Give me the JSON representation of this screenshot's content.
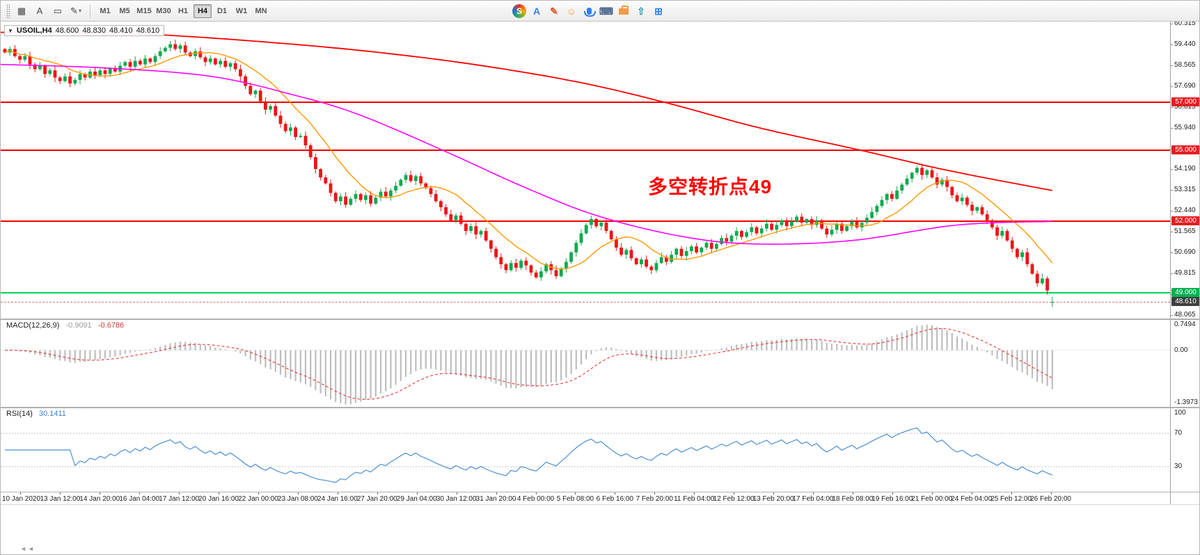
{
  "window": {
    "bottom_scroll_hint": "◄◄"
  },
  "toolbar": {
    "left_icons": [
      {
        "name": "charts-grid-icon",
        "glyph": "▦"
      },
      {
        "name": "insert-text-icon",
        "glyph": "A"
      },
      {
        "name": "text-label-icon",
        "glyph": "▭"
      },
      {
        "name": "draw-tools-icon",
        "glyph": "✎",
        "caret": "▾"
      }
    ],
    "timeframes": [
      "M1",
      "M5",
      "M15",
      "M30",
      "H1",
      "H4",
      "D1",
      "W1",
      "MN"
    ],
    "active_timeframe": "H4",
    "ime_icons": [
      {
        "name": "sogou-logo-icon",
        "glyph": "S",
        "type": "logo"
      },
      {
        "name": "input-mode-icon",
        "glyph": "A",
        "color": "#2f80ed"
      },
      {
        "name": "handwrite-pen-icon",
        "glyph": "✎",
        "color": "#e05a2b"
      },
      {
        "name": "emoji-icon",
        "glyph": "☺",
        "color": "#f2a33c"
      },
      {
        "name": "voice-mic-icon",
        "type": "mic"
      },
      {
        "name": "soft-keyboard-icon",
        "glyph": "⌨",
        "color": "#4f6b8f"
      },
      {
        "name": "toolbox-icon",
        "type": "toolbox"
      },
      {
        "name": "skin-share-icon",
        "glyph": "⇧",
        "color": "#2a9db0"
      },
      {
        "name": "apps-grid-icon",
        "glyph": "⊞",
        "color": "#2f80ed"
      }
    ]
  },
  "chart": {
    "collapse_arrow": "▼",
    "symbol": "USOIL,H4",
    "open": "48.600",
    "high": "48.830",
    "low": "48.410",
    "close": "48.610",
    "annotation": {
      "text": "多空转折点49",
      "color": "#ff0000"
    }
  },
  "chart_data": {
    "type": "candlestick",
    "symbol": "USOIL",
    "timeframe": "H4",
    "closes": [
      59.1,
      59.25,
      58.95,
      58.8,
      58.95,
      58.6,
      58.4,
      58.55,
      58.2,
      58.35,
      58.05,
      57.9,
      58.1,
      57.8,
      57.95,
      58.2,
      58.05,
      58.3,
      58.15,
      58.35,
      58.2,
      58.45,
      58.3,
      58.55,
      58.7,
      58.5,
      58.75,
      58.6,
      58.85,
      58.7,
      58.95,
      59.15,
      59.3,
      59.45,
      59.25,
      59.4,
      59.1,
      58.95,
      59.15,
      58.9,
      58.7,
      58.85,
      58.6,
      58.75,
      58.5,
      58.65,
      58.4,
      58.1,
      57.7,
      57.35,
      57.5,
      57.05,
      56.7,
      56.85,
      56.45,
      56.1,
      55.8,
      55.95,
      55.55,
      55.6,
      55.2,
      54.7,
      54.2,
      53.85,
      53.6,
      53.2,
      52.85,
      53.05,
      52.7,
      52.95,
      53.15,
      52.9,
      53.1,
      52.75,
      53.0,
      53.25,
      53.05,
      53.3,
      53.5,
      53.75,
      53.95,
      53.7,
      53.9,
      53.6,
      53.4,
      53.15,
      52.85,
      52.6,
      52.3,
      52.05,
      52.25,
      51.9,
      51.6,
      51.8,
      51.45,
      51.6,
      51.2,
      50.85,
      50.5,
      50.2,
      49.95,
      50.25,
      50.05,
      50.35,
      50.15,
      49.85,
      49.65,
      49.9,
      50.2,
      49.95,
      49.7,
      50.0,
      50.3,
      50.7,
      51.1,
      51.5,
      51.85,
      52.1,
      51.8,
      51.95,
      51.6,
      51.25,
      50.9,
      50.6,
      50.8,
      50.45,
      50.2,
      50.4,
      50.1,
      49.95,
      50.25,
      50.5,
      50.3,
      50.6,
      50.85,
      50.55,
      50.75,
      50.95,
      50.7,
      50.9,
      51.1,
      50.85,
      51.05,
      51.3,
      51.15,
      51.4,
      51.6,
      51.35,
      51.55,
      51.75,
      51.5,
      51.7,
      51.9,
      51.65,
      51.85,
      52.05,
      51.8,
      52.0,
      52.2,
      51.95,
      52.1,
      51.85,
      52.05,
      51.7,
      51.45,
      51.65,
      51.9,
      51.6,
      51.8,
      52.0,
      51.75,
      51.95,
      52.15,
      52.4,
      52.65,
      52.9,
      53.15,
      52.95,
      53.3,
      53.55,
      53.8,
      54.05,
      54.25,
      53.95,
      54.15,
      53.85,
      53.55,
      53.75,
      53.45,
      53.1,
      52.85,
      53.0,
      52.7,
      52.45,
      52.6,
      52.3,
      52.05,
      51.75,
      51.4,
      51.6,
      51.2,
      50.85,
      50.5,
      50.7,
      50.2,
      49.8,
      49.4,
      49.6,
      49.1,
      48.61
    ],
    "last_candle": {
      "open": 48.6,
      "high": 48.83,
      "low": 48.41,
      "close": 48.61
    },
    "price_axis": [
      "60.315",
      "59.440",
      "58.565",
      "57.690",
      "56.815",
      "55.940",
      "55.065",
      "54.190",
      "53.315",
      "52.440",
      "51.565",
      "50.690",
      "49.815",
      "48.940",
      "48.065"
    ],
    "hlines": [
      {
        "price": 57.0,
        "label": "57.000",
        "color": "#f40000",
        "label_bg": "#e02020"
      },
      {
        "price": 55.0,
        "label": "55.000",
        "color": "#f40000",
        "label_bg": "#e02020"
      },
      {
        "price": 52.0,
        "label": "52.000",
        "color": "#f40000",
        "label_bg": "#e02020"
      },
      {
        "price": 49.0,
        "label": "49.000",
        "color": "#00d455",
        "label_bg": "#00b050"
      }
    ],
    "current_price": {
      "price": 48.61,
      "label": "48.610",
      "label_bg": "#3f3f3f",
      "line_color": "#d87070"
    },
    "colors": {
      "up": "#0faa4e",
      "down": "#ee1515",
      "ma_fast": "#ff9800",
      "ma_mid": "#ff00ff",
      "ma_slow": "#ff0000"
    },
    "ma_fast_period": 12,
    "ma_mid_points": [
      [
        0,
        58.6
      ],
      [
        0.1,
        58.45
      ],
      [
        0.2,
        58.1
      ],
      [
        0.28,
        57.3
      ],
      [
        0.34,
        56.5
      ],
      [
        0.42,
        55.0
      ],
      [
        0.5,
        53.4
      ],
      [
        0.57,
        52.2
      ],
      [
        0.65,
        51.35
      ],
      [
        0.72,
        51.05
      ],
      [
        0.81,
        51.2
      ],
      [
        0.91,
        51.85
      ],
      [
        1,
        52.0
      ]
    ],
    "ma_slow_points": [
      [
        0,
        59.95
      ],
      [
        0.08,
        59.95
      ],
      [
        0.15,
        59.85
      ],
      [
        0.25,
        59.55
      ],
      [
        0.35,
        59.15
      ],
      [
        0.45,
        58.6
      ],
      [
        0.55,
        57.85
      ],
      [
        0.632,
        57.0
      ],
      [
        0.72,
        55.95
      ],
      [
        0.817,
        55.0
      ],
      [
        0.9,
        54.15
      ],
      [
        1,
        53.3
      ]
    ],
    "macd": {
      "label": "MACD(12,26,9)",
      "value_main": "-0.9091",
      "value_signal": "-0.6786",
      "axis_labels": [
        "0.7494",
        "0.00",
        "-1.3973"
      ],
      "axis_values": [
        0.7494,
        0,
        -1.3973
      ],
      "range_top": 0.7494,
      "range_bottom": -1.3973,
      "hist_color": "#bdbdbd",
      "signal_color": "#e53935"
    },
    "rsi": {
      "label": "RSI(14)",
      "value": "30.1411",
      "period": 14,
      "levels": [
        70,
        30
      ],
      "axis_labels": [
        "100",
        "70",
        "30"
      ],
      "axis_values": [
        100,
        70,
        30
      ],
      "line_color": "#4a8fd2"
    },
    "time_axis": [
      "10 Jan 2020",
      "13 Jan 12:00",
      "14 Jan 20:00",
      "16 Jan 04:00",
      "17 Jan 12:00",
      "20 Jan 16:00",
      "22 Jan 00:00",
      "23 Jan 08:00",
      "24 Jan 16:00",
      "27 Jan 20:00",
      "29 Jan 04:00",
      "30 Jan 12:00",
      "31 Jan 20:00",
      "4 Feb 00:00",
      "5 Feb 08:00",
      "6 Feb 16:00",
      "7 Feb 20:00",
      "11 Feb 04:00",
      "12 Feb 12:00",
      "13 Feb 20:00",
      "17 Feb 04:00",
      "18 Feb 08:00",
      "19 Feb 16:00",
      "21 Feb 00:00",
      "24 Feb 04:00",
      "25 Feb 12:00",
      "26 Feb 20:00"
    ]
  }
}
